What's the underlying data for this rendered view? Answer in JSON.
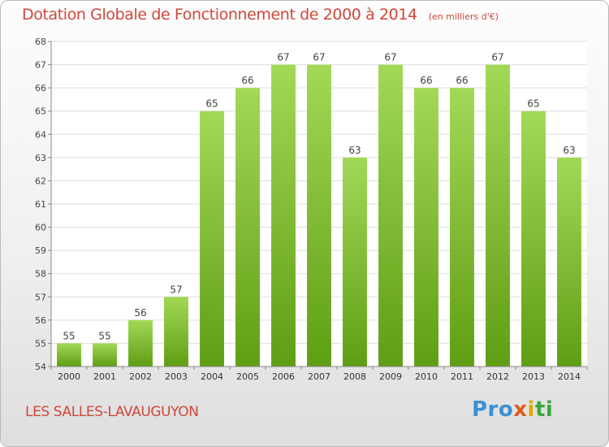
{
  "header": {
    "title": "Dotation Globale de Fonctionnement de 2000 à 2014",
    "subtitle": "(en milliers d'€)"
  },
  "footer": {
    "commune": "LES SALLES-LAVAUGUYON",
    "logo": {
      "part1": "Pro",
      "part2": "x",
      "part3": "i",
      "part4": "ti"
    }
  },
  "colors": {
    "title": "#d0473a",
    "bar_top": "#a2d957",
    "bar_bottom": "#5f9e14"
  },
  "chart_data": {
    "type": "bar",
    "title": "Dotation Globale de Fonctionnement de 2000 à 2014",
    "subtitle": "(en milliers d'€)",
    "categories": [
      "2000",
      "2001",
      "2002",
      "2003",
      "2004",
      "2005",
      "2006",
      "2007",
      "2008",
      "2009",
      "2010",
      "2011",
      "2012",
      "2013",
      "2014"
    ],
    "values": [
      55,
      55,
      56,
      57,
      65,
      66,
      67,
      67,
      63,
      67,
      66,
      66,
      67,
      65,
      63
    ],
    "ylim": [
      54,
      68
    ],
    "yticks": [
      54,
      55,
      56,
      57,
      58,
      59,
      60,
      61,
      62,
      63,
      64,
      65,
      66,
      67,
      68
    ],
    "grid": true,
    "data_labels": true
  }
}
